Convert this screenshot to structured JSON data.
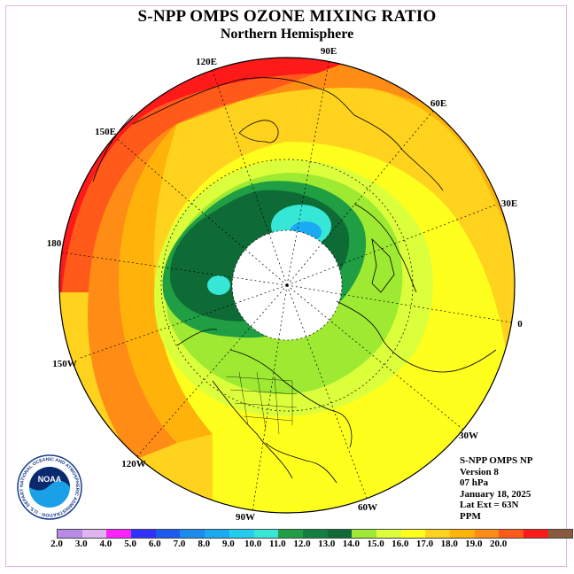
{
  "header": {
    "title": "S-NPP OMPS OZONE MIXING RATIO",
    "subtitle": "Northern Hemisphere"
  },
  "map": {
    "projection": "polar-stereographic-north",
    "longitude_labels": [
      "120E",
      "90E",
      "60E",
      "150E",
      "30E",
      "180",
      "0",
      "150W",
      "30W",
      "120W",
      "60W",
      "90W"
    ],
    "field_colors": {
      "red": "#ff1a1a",
      "red_orange": "#ff5a1a",
      "orange": "#ff8c14",
      "light_orange": "#ffb20a",
      "gold": "#ffd21e",
      "yellow": "#ffff1e",
      "yellow_green": "#dcff3c",
      "light_green": "#9eea32",
      "green": "#1f9e44",
      "dark_green": "#0e6b35",
      "cyan": "#36e6d6",
      "sky": "#1aaaf2",
      "no_data": "#ffffff"
    }
  },
  "info": {
    "lines": [
      "S-NPP OMPS NP",
      "Version 8",
      "07 hPa",
      "January 18, 2025",
      "Lat Ext = 63N",
      "PPM"
    ]
  },
  "logo": {
    "text": "NOAA",
    "ring_text": "NATIONAL OCEANIC AND ATMOSPHERIC ADMINISTRATION · U.S. DEPARTMENT OF COMMERCE",
    "icon": "noaa-seal-icon"
  },
  "colorbar": {
    "ticks": [
      "2.0",
      "3.0",
      "4.0",
      "5.0",
      "6.0",
      "7.0",
      "8.0",
      "9.0",
      "10.0",
      "11.0",
      "12.0",
      "13.0",
      "14.0",
      "15.0",
      "16.0",
      "17.0",
      "18.0",
      "19.0",
      "20.0"
    ],
    "colors": [
      "#b98ae8",
      "#e0b4f0",
      "#ff22ff",
      "#3030ff",
      "#1a5cf0",
      "#1a8cf0",
      "#1aaaf2",
      "#24ccf0",
      "#36e6d6",
      "#1f9e44",
      "#128040",
      "#0e6b35",
      "#9eea32",
      "#dcff3c",
      "#ffff1e",
      "#ffd21e",
      "#ffb20a",
      "#ff8c14",
      "#ff5a1a",
      "#ff1a1a",
      "#8a5a3c"
    ]
  }
}
